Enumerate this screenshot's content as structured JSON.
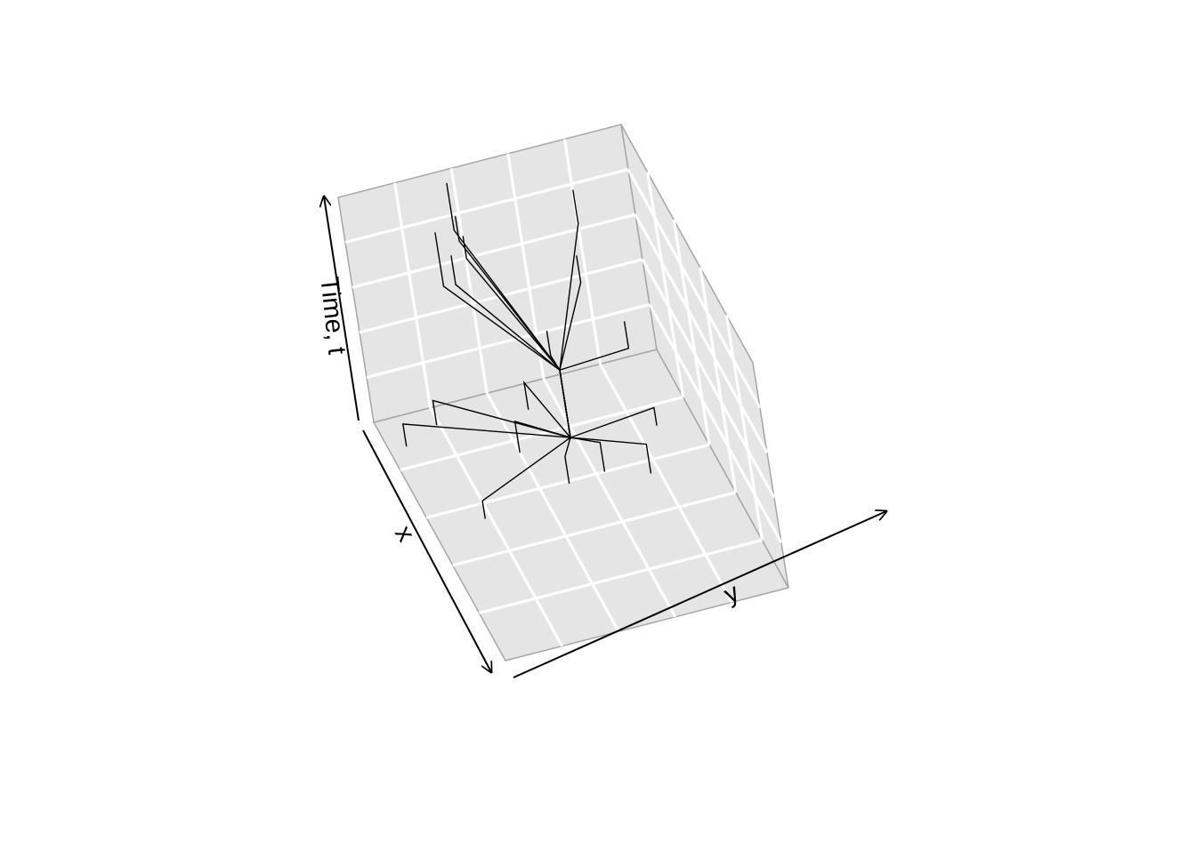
{
  "chart_data": {
    "type": "line",
    "projection": "3d",
    "axes": {
      "x": {
        "label": "x"
      },
      "y": {
        "label": "y"
      },
      "z": {
        "label": "Time, t"
      }
    },
    "grid": true,
    "legend": "none",
    "colors": {
      "panel": "#e5e5e5",
      "panel_border": "#a6a6a6",
      "grid": "#ffffff",
      "line": "#000000",
      "axis": "#000000"
    },
    "series": [
      {
        "points": [
          [
            -2.5,
            -1,
            0
          ],
          [
            -2.5,
            -1,
            0.14
          ],
          [
            0,
            0,
            0.3
          ],
          [
            0,
            0,
            0.5
          ]
        ]
      },
      {
        "points": [
          [
            -3.8,
            -4.4,
            0
          ],
          [
            -3.8,
            -4.4,
            0.1
          ],
          [
            0,
            0,
            0.3
          ],
          [
            0,
            0,
            0.5
          ]
        ]
      },
      {
        "points": [
          [
            -4.3,
            -3.1,
            0
          ],
          [
            -4.3,
            -3.1,
            0.11
          ],
          [
            0,
            0,
            0.3
          ],
          [
            0,
            0,
            0.5
          ]
        ]
      },
      {
        "points": [
          [
            -4,
            0,
            0
          ],
          [
            -4,
            0,
            0.12
          ],
          [
            0,
            0,
            0.3
          ],
          [
            0,
            0,
            0.5
          ]
        ]
      },
      {
        "points": [
          [
            -1,
            1.3,
            0
          ],
          [
            -1,
            1.3,
            0.13
          ],
          [
            0,
            0,
            0.3
          ],
          [
            0,
            0,
            0.5
          ]
        ]
      },
      {
        "points": [
          [
            -2.2,
            3.7,
            0
          ],
          [
            -2.2,
            3.7,
            0.08
          ],
          [
            0,
            0,
            0.3
          ],
          [
            0,
            0,
            0.5
          ]
        ]
      },
      {
        "points": [
          [
            -0.5,
            2.7,
            0
          ],
          [
            -0.5,
            2.7,
            0.13
          ],
          [
            0,
            0,
            0.3
          ],
          [
            0,
            0,
            0.5
          ]
        ]
      },
      {
        "points": [
          [
            -0.9,
            0,
            0
          ],
          [
            -0.9,
            0,
            0.12
          ],
          [
            0,
            0,
            0.3
          ],
          [
            0,
            0,
            0.5
          ]
        ]
      },
      {
        "points": [
          [
            -0.4,
            -3.2,
            0
          ],
          [
            -0.4,
            -3.2,
            0.08
          ],
          [
            0,
            0,
            0.3
          ],
          [
            0,
            0,
            0.5
          ]
        ]
      },
      {
        "points": [
          [
            0,
            0,
            0.5
          ],
          [
            0,
            0,
            0.6
          ],
          [
            -2.8,
            -2.6,
            0.76
          ],
          [
            -2.8,
            -2.6,
            1
          ]
        ]
      },
      {
        "points": [
          [
            0,
            0,
            0.5
          ],
          [
            0,
            0,
            0.6
          ],
          [
            -4.5,
            -1.4,
            0.79
          ],
          [
            -4.5,
            -1.4,
            1
          ]
        ]
      },
      {
        "points": [
          [
            0,
            0,
            0.5
          ],
          [
            0,
            0,
            0.6
          ],
          [
            -1.8,
            -2.5,
            0.87
          ],
          [
            -1.8,
            -2.5,
            1
          ]
        ]
      },
      {
        "points": [
          [
            0,
            0,
            0.5
          ],
          [
            0,
            0,
            0.6
          ],
          [
            -2.4,
            -1.8,
            0.9
          ],
          [
            -2.4,
            -1.8,
            1
          ]
        ]
      },
      {
        "points": [
          [
            0,
            0,
            0.5
          ],
          [
            0,
            0,
            0.6
          ],
          [
            -0.1,
            -0.2,
            0.66
          ],
          [
            -0.1,
            -0.2,
            0.77
          ]
        ]
      },
      {
        "points": [
          [
            0,
            0,
            0.5
          ],
          [
            0,
            0,
            0.6
          ],
          [
            0.8,
            2.2,
            0.71
          ],
          [
            0.8,
            2.2,
            0.83
          ]
        ]
      },
      {
        "points": [
          [
            0,
            0,
            0.5
          ],
          [
            0,
            0,
            0.6
          ],
          [
            -1.3,
            1.6,
            0.8
          ],
          [
            -1.3,
            1.6,
            0.92
          ]
        ]
      },
      {
        "points": [
          [
            0,
            0,
            0.5
          ],
          [
            0,
            0,
            0.6
          ],
          [
            -3.4,
            2.5,
            0.81
          ],
          [
            -3.4,
            2.5,
            0.96
          ]
        ]
      },
      {
        "points": [
          [
            0,
            0,
            0.5
          ],
          [
            0,
            0,
            0.6
          ],
          [
            -3.2,
            -1.7,
            0.89
          ],
          [
            -3.2,
            -1.7,
            1
          ]
        ]
      }
    ]
  }
}
